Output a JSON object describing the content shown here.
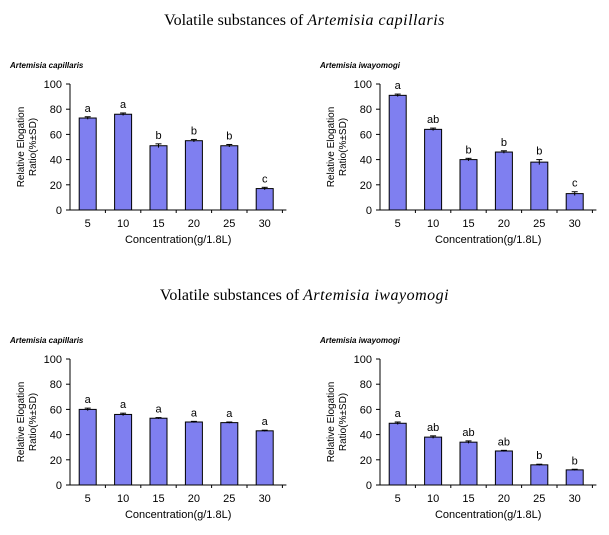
{
  "sections": [
    {
      "title_prefix": "Volatile substances of ",
      "title_species": "Artemisia capillaris"
    },
    {
      "title_prefix": "Volatile substances of ",
      "title_species": "Artemisia iwayomogi"
    }
  ],
  "colors": {
    "bar": "#7f7ff0",
    "bar_stroke": "#000000"
  },
  "chart_data": [
    {
      "type": "bar",
      "title": "Artemisia capillaris",
      "xlabel": "Concentration(g/1.8L)",
      "ylabel": "Relative Elogation Ratio(%±SD)",
      "categories": [
        "5",
        "10",
        "15",
        "20",
        "25",
        "30"
      ],
      "values": [
        73,
        76,
        51,
        55,
        51,
        17
      ],
      "errors": [
        1,
        1,
        1.5,
        1,
        1,
        1
      ],
      "labels": [
        "a",
        "a",
        "b",
        "b",
        "b",
        "c"
      ],
      "ylim": [
        0,
        100
      ],
      "yticks": [
        0,
        20,
        40,
        60,
        80,
        100
      ]
    },
    {
      "type": "bar",
      "title": "Artemisia iwayomogi",
      "xlabel": "Concentration(g/1.8L)",
      "ylabel": "Relative Elogation Ratio(%±SD)",
      "categories": [
        "5",
        "10",
        "15",
        "20",
        "25",
        "30"
      ],
      "values": [
        91,
        64,
        40,
        46,
        38,
        13
      ],
      "errors": [
        1,
        1,
        1,
        1,
        2,
        1.5
      ],
      "labels": [
        "a",
        "ab",
        "b",
        "b",
        "b",
        "c"
      ],
      "ylim": [
        0,
        100
      ],
      "yticks": [
        0,
        20,
        40,
        60,
        80,
        100
      ]
    },
    {
      "type": "bar",
      "title": "Artemisia capillaris",
      "xlabel": "Concentration(g/1.8L)",
      "ylabel": "Relative Elogation Ratio(%±SD)",
      "categories": [
        "5",
        "10",
        "15",
        "20",
        "25",
        "30"
      ],
      "values": [
        60,
        56,
        53,
        50,
        49.5,
        43
      ],
      "errors": [
        1,
        1,
        0.5,
        0.5,
        0.5,
        0.5
      ],
      "labels": [
        "a",
        "a",
        "a",
        "a",
        "a",
        "a"
      ],
      "ylim": [
        0,
        100
      ],
      "yticks": [
        0,
        20,
        40,
        60,
        80,
        100
      ]
    },
    {
      "type": "bar",
      "title": "Artemisia iwayomogi",
      "xlabel": "Concentration(g/1.8L)",
      "ylabel": "Relative Elogation Ratio(%±SD)",
      "categories": [
        "5",
        "10",
        "15",
        "20",
        "25",
        "30"
      ],
      "values": [
        49,
        38,
        34,
        27,
        16,
        12
      ],
      "errors": [
        1,
        1,
        1,
        0.5,
        0.5,
        0.5
      ],
      "labels": [
        "a",
        "ab",
        "ab",
        "ab",
        "b",
        "b"
      ],
      "ylim": [
        0,
        100
      ],
      "yticks": [
        0,
        20,
        40,
        60,
        80,
        100
      ]
    }
  ]
}
